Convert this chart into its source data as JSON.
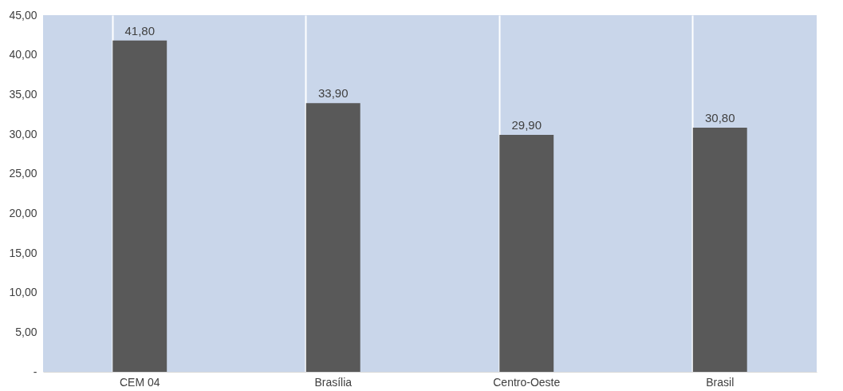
{
  "chart_data": {
    "type": "bar",
    "categories": [
      "CEM 04",
      "Brasília",
      "Centro-Oeste",
      "Brasil"
    ],
    "values": [
      41.8,
      33.9,
      29.9,
      30.8
    ],
    "value_labels": [
      "41,80",
      "33,90",
      "29,90",
      "30,80"
    ],
    "color": "#595959",
    "ylim": [
      0,
      45
    ],
    "yticks": [
      {
        "value": 0,
        "label": "-"
      },
      {
        "value": 5,
        "label": "5,00"
      },
      {
        "value": 10,
        "label": "10,00"
      },
      {
        "value": 15,
        "label": "15,00"
      },
      {
        "value": 20,
        "label": "20,00"
      },
      {
        "value": 25,
        "label": "25,00"
      },
      {
        "value": 30,
        "label": "30,00"
      },
      {
        "value": 35,
        "label": "35,00"
      },
      {
        "value": 40,
        "label": "40,00"
      },
      {
        "value": 45,
        "label": "45,00"
      }
    ],
    "grid": "x"
  }
}
